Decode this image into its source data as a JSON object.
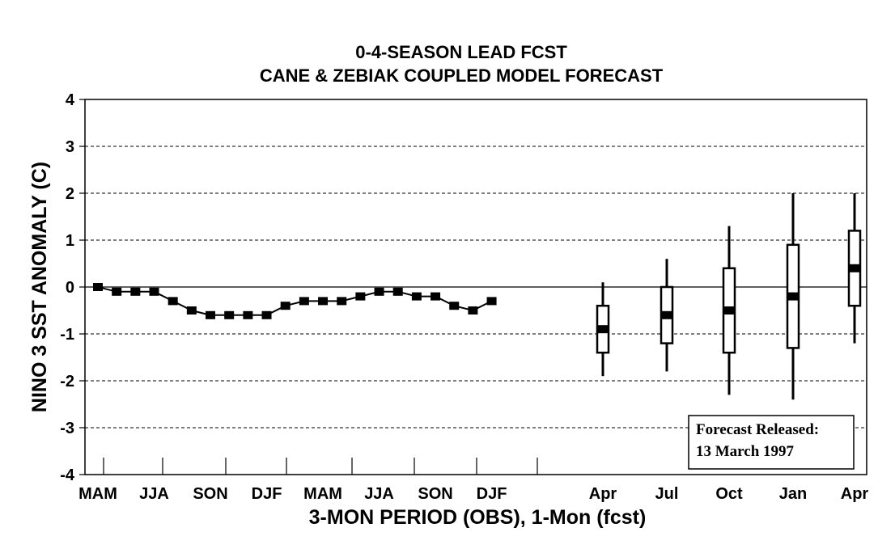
{
  "chart_data": {
    "type": "box_and_line",
    "title": "0-4-SEASON LEAD FCST",
    "subtitle": "CANE & ZEBIAK COUPLED MODEL FORECAST",
    "xlabel": "3-MON PERIOD (OBS), 1-Mon (fcst)",
    "ylabel": "NINO 3 SST ANOMALY (C)",
    "ylim": [
      -4,
      4
    ],
    "yticks": [
      "4",
      "3",
      "2",
      "1",
      "0",
      "-1",
      "-2",
      "-3",
      "-4"
    ],
    "grid": "dashed horizontal",
    "x_tick_labels": [
      "MAM",
      "JJA",
      "SON",
      "DJF",
      "MAM",
      "JJA",
      "SON",
      "DJF",
      "Apr",
      "Jul",
      "Oct",
      "Jan",
      "Apr"
    ],
    "observed": {
      "values": [
        0.0,
        -0.1,
        -0.1,
        -0.1,
        -0.3,
        -0.5,
        -0.6,
        -0.6,
        -0.6,
        -0.6,
        -0.4,
        -0.3,
        -0.3,
        -0.3,
        -0.2,
        -0.1,
        -0.1,
        -0.2,
        -0.2,
        -0.4,
        -0.5,
        -0.3
      ]
    },
    "forecast": [
      {
        "period": "Apr",
        "whisker_high": 0.1,
        "box_high": -0.4,
        "median": -0.9,
        "box_low": -1.4,
        "whisker_low": -1.9
      },
      {
        "period": "Jul",
        "whisker_high": 0.6,
        "box_high": 0.0,
        "median": -0.6,
        "box_low": -1.2,
        "whisker_low": -1.8
      },
      {
        "period": "Oct",
        "whisker_high": 1.3,
        "box_high": 0.4,
        "median": -0.5,
        "box_low": -1.4,
        "whisker_low": -2.3
      },
      {
        "period": "Jan",
        "whisker_high": 2.0,
        "box_high": 0.9,
        "median": -0.2,
        "box_low": -1.3,
        "whisker_low": -2.4
      },
      {
        "period": "Apr",
        "whisker_high": 2.0,
        "box_high": 1.2,
        "median": 0.4,
        "box_low": -0.4,
        "whisker_low": -1.2
      }
    ],
    "annotation": {
      "line1": "Forecast Released:",
      "line2": "13 March 1997"
    }
  }
}
